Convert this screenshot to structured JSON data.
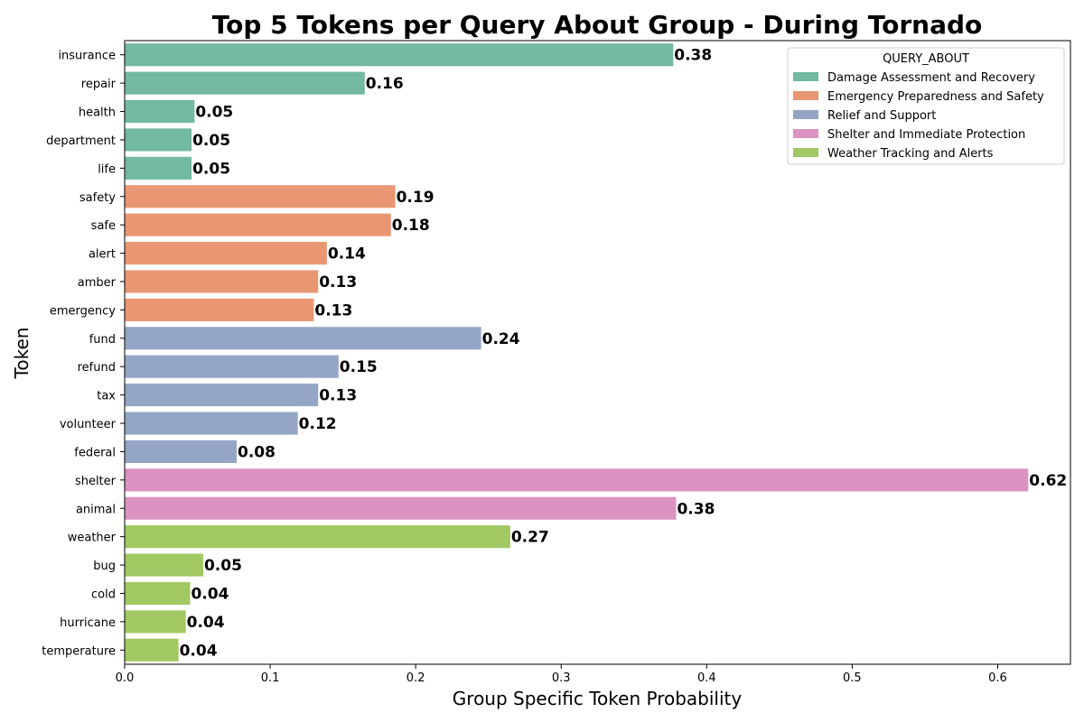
{
  "chart_data": {
    "type": "bar",
    "orientation": "horizontal",
    "title": "Top 5 Tokens per Query About Group - During Tornado",
    "xlabel": "Group Specific Token Probability",
    "ylabel": "Token",
    "xlim": [
      0,
      0.65
    ],
    "xticks": [
      "0.0",
      "0.1",
      "0.2",
      "0.3",
      "0.4",
      "0.5",
      "0.6"
    ],
    "grid": false,
    "legend": {
      "title": "QUERY_ABOUT",
      "placement": "top-right",
      "entries": [
        {
          "name": "Damage Assessment and Recovery",
          "color": "#73b8a0"
        },
        {
          "name": "Emergency Preparedness and Safety",
          "color": "#e99773"
        },
        {
          "name": "Relief and Support",
          "color": "#95a5c5"
        },
        {
          "name": "Shelter and Immediate Protection",
          "color": "#dc93c1"
        },
        {
          "name": "Weather Tracking and Alerts",
          "color": "#a2c864"
        }
      ]
    },
    "bars": [
      {
        "token": "insurance",
        "value": 0.377,
        "label": "0.38",
        "group": 0
      },
      {
        "token": "repair",
        "value": 0.165,
        "label": "0.16",
        "group": 0
      },
      {
        "token": "health",
        "value": 0.048,
        "label": "0.05",
        "group": 0
      },
      {
        "token": "department",
        "value": 0.046,
        "label": "0.05",
        "group": 0
      },
      {
        "token": "life",
        "value": 0.046,
        "label": "0.05",
        "group": 0
      },
      {
        "token": "safety",
        "value": 0.186,
        "label": "0.19",
        "group": 1
      },
      {
        "token": "safe",
        "value": 0.183,
        "label": "0.18",
        "group": 1
      },
      {
        "token": "alert",
        "value": 0.139,
        "label": "0.14",
        "group": 1
      },
      {
        "token": "amber",
        "value": 0.133,
        "label": "0.13",
        "group": 1
      },
      {
        "token": "emergency",
        "value": 0.13,
        "label": "0.13",
        "group": 1
      },
      {
        "token": "fund",
        "value": 0.245,
        "label": "0.24",
        "group": 2
      },
      {
        "token": "refund",
        "value": 0.147,
        "label": "0.15",
        "group": 2
      },
      {
        "token": "tax",
        "value": 0.133,
        "label": "0.13",
        "group": 2
      },
      {
        "token": "volunteer",
        "value": 0.119,
        "label": "0.12",
        "group": 2
      },
      {
        "token": "federal",
        "value": 0.077,
        "label": "0.08",
        "group": 2
      },
      {
        "token": "shelter",
        "value": 0.621,
        "label": "0.62",
        "group": 3
      },
      {
        "token": "animal",
        "value": 0.379,
        "label": "0.38",
        "group": 3
      },
      {
        "token": "weather",
        "value": 0.265,
        "label": "0.27",
        "group": 4
      },
      {
        "token": "bug",
        "value": 0.054,
        "label": "0.05",
        "group": 4
      },
      {
        "token": "cold",
        "value": 0.045,
        "label": "0.04",
        "group": 4
      },
      {
        "token": "hurricane",
        "value": 0.042,
        "label": "0.04",
        "group": 4
      },
      {
        "token": "temperature",
        "value": 0.037,
        "label": "0.04",
        "group": 4
      }
    ]
  }
}
